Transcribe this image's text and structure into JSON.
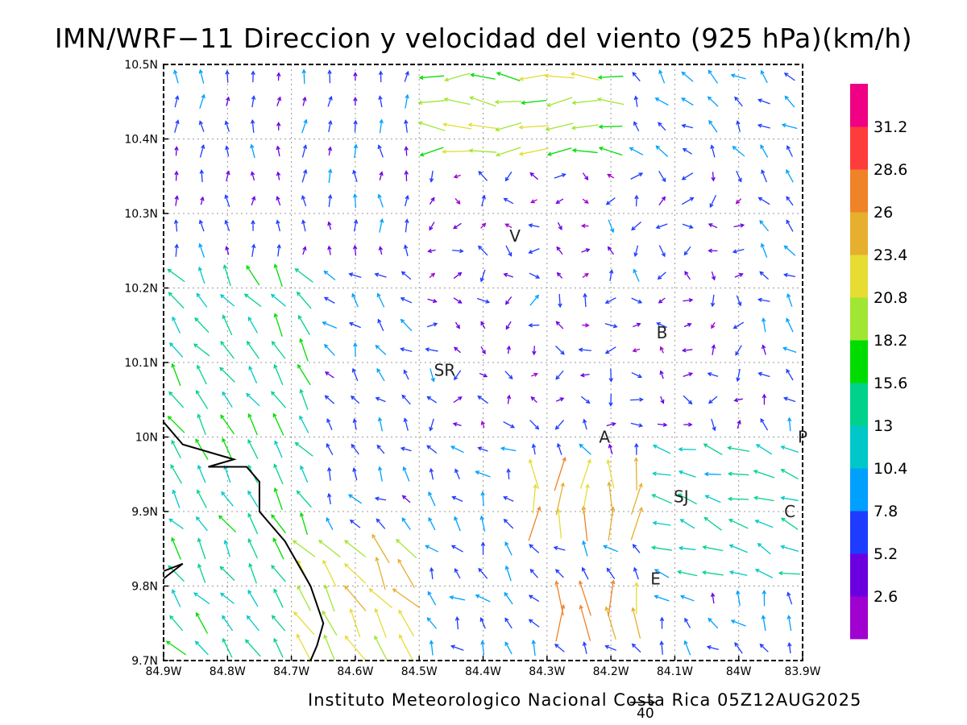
{
  "title": "IMN/WRF−11 Direccion y velocidad del viento (925 hPa)(km/h)",
  "footer": "Instituto Meteorologico Nacional Costa Rica 05Z12AUG2025",
  "reference_vector": {
    "value": "40"
  },
  "axes": {
    "x_ticks": [
      "84.9W",
      "84.8W",
      "84.7W",
      "84.6W",
      "84.5W",
      "84.4W",
      "84.3W",
      "84.2W",
      "84.1W",
      "84W",
      "83.9W"
    ],
    "y_ticks": [
      "9.7N",
      "9.8N",
      "9.9N",
      "10N",
      "10.1N",
      "10.2N",
      "10.3N",
      "10.4N",
      "10.5N"
    ],
    "lon_range": [
      -84.9,
      -83.9
    ],
    "lat_range": [
      9.7,
      10.5
    ],
    "grid": "dotted"
  },
  "colorbar": {
    "labels": [
      "2.6",
      "5.2",
      "7.8",
      "10.4",
      "13",
      "15.6",
      "18.2",
      "20.8",
      "23.4",
      "26",
      "28.6",
      "31.2"
    ],
    "colors": [
      "#a000d0",
      "#6a00e0",
      "#1e3cff",
      "#00a0ff",
      "#00c8c8",
      "#00d28c",
      "#00dc00",
      "#a0e632",
      "#e6dc32",
      "#e6af2d",
      "#f08228",
      "#ff3c3c",
      "#f00082"
    ]
  },
  "stations": [
    {
      "label": "V",
      "lon": -84.35,
      "lat": 10.27
    },
    {
      "label": "B",
      "lon": -84.12,
      "lat": 10.14
    },
    {
      "label": "SR",
      "lon": -84.46,
      "lat": 10.09
    },
    {
      "label": "A",
      "lon": -84.21,
      "lat": 10.0
    },
    {
      "label": "SJ",
      "lon": -84.09,
      "lat": 9.92
    },
    {
      "label": "C",
      "lon": -83.92,
      "lat": 9.9
    },
    {
      "label": "E",
      "lon": -84.13,
      "lat": 9.81
    },
    {
      "label": "P",
      "lon": -83.9,
      "lat": 10.0
    }
  ],
  "map_data": {
    "type": "wind_vector_field",
    "level": "925 hPa",
    "units": "km/h",
    "coastline": [
      [
        -84.9,
        10.02
      ],
      [
        -84.87,
        9.99
      ],
      [
        -84.83,
        9.98
      ],
      [
        -84.79,
        9.97
      ],
      [
        -84.83,
        9.96
      ],
      [
        -84.77,
        9.96
      ],
      [
        -84.75,
        9.94
      ],
      [
        -84.75,
        9.9
      ],
      [
        -84.73,
        9.88
      ],
      [
        -84.71,
        9.86
      ],
      [
        -84.69,
        9.83
      ],
      [
        -84.67,
        9.8
      ],
      [
        -84.65,
        9.75
      ],
      [
        -84.66,
        9.72
      ],
      [
        -84.67,
        9.7
      ]
    ],
    "coastline_small": [
      [
        -84.9,
        9.82
      ],
      [
        -84.87,
        9.83
      ],
      [
        -84.9,
        9.81
      ]
    ],
    "vector_regions": [
      {
        "lon": [
          -84.9,
          -84.68
        ],
        "lat": [
          9.7,
          10.25
        ],
        "dir": "NW",
        "speed": 14
      },
      {
        "lon": [
          -84.68,
          -84.5
        ],
        "lat": [
          9.7,
          9.88
        ],
        "dir": "NW",
        "speed": 22
      },
      {
        "lon": [
          -84.5,
          -84.2
        ],
        "lat": [
          10.38,
          10.49
        ],
        "dir": "W",
        "speed": 19
      },
      {
        "lon": [
          -84.9,
          -84.5
        ],
        "lat": [
          10.25,
          10.5
        ],
        "dir": "N",
        "speed": 6
      },
      {
        "lon": [
          -84.5,
          -84.0
        ],
        "lat": [
          10.0,
          10.37
        ],
        "dir": "variable",
        "speed": 5
      },
      {
        "lon": [
          -84.35,
          -84.15
        ],
        "lat": [
          9.88,
          9.98
        ],
        "dir": "N",
        "speed": 24
      },
      {
        "lon": [
          -84.3,
          -84.15
        ],
        "lat": [
          9.73,
          9.8
        ],
        "dir": "N",
        "speed": 26
      },
      {
        "lon": [
          -84.15,
          -83.9
        ],
        "lat": [
          9.8,
          10.0
        ],
        "dir": "WNW",
        "speed": 13
      }
    ]
  }
}
